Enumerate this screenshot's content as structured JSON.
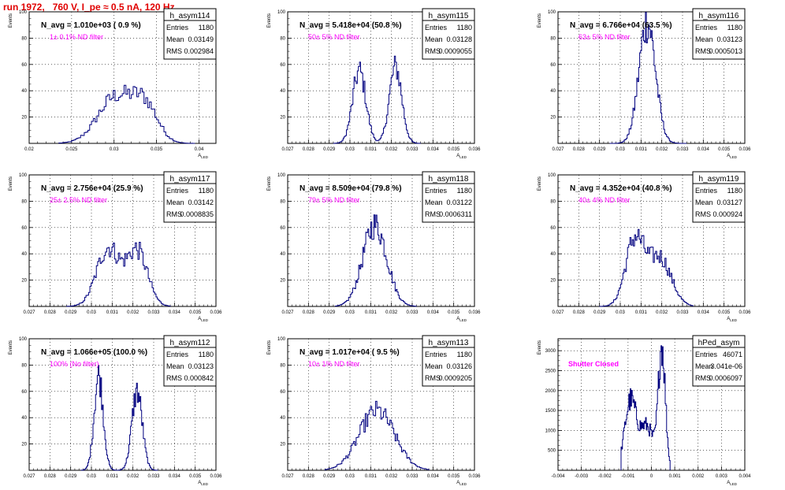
{
  "run_title": "run 1972,   760 V, I_pe ≈ 0.5 nA, 120 Hz",
  "colors": {
    "histogram": "#00007f",
    "annotation": "#ff00ff",
    "title": "#e00000",
    "grid": "#000000"
  },
  "stats_labels": {
    "entries": "Entries",
    "mean": "Mean",
    "rms": "RMS"
  },
  "chart_data": [
    {
      "type": "histogram",
      "name": "h_asym114",
      "nav": "N_avg = 1.010e+03 ( 0.9 %)",
      "note": "1± 0.1% ND filter",
      "xlabel": "A_LED",
      "ylabel": "Events",
      "xlim": [
        0.02,
        0.042
      ],
      "ylim": [
        0,
        100
      ],
      "xticks": [
        "0.02",
        "0.025",
        "0.03",
        "0.035",
        "0.04"
      ],
      "xtick_values": [
        0.02,
        0.025,
        0.03,
        0.035,
        0.04
      ],
      "yticks": [
        "20",
        "40",
        "60",
        "80",
        "100"
      ],
      "ytick_values": [
        20,
        40,
        60,
        80,
        100
      ],
      "stats": {
        "entries": "1180",
        "mean": "0.03149",
        "rms": "0.002984"
      },
      "peaks": [
        {
          "mu": 0.0302,
          "sigma": 0.0021,
          "height": 35
        },
        {
          "mu": 0.0337,
          "sigma": 0.0015,
          "height": 26
        }
      ],
      "bins": {
        "lo": 0.0235,
        "hi": 0.0395,
        "n": 75
      }
    },
    {
      "type": "histogram",
      "name": "h_asym115",
      "nav": "N_avg = 5.418e+04 (50.8 %)",
      "note": "50± 5% ND filter",
      "xlabel": "A_LED",
      "ylabel": "Events",
      "xlim": [
        0.027,
        0.036
      ],
      "ylim": [
        0,
        100
      ],
      "xticks": [
        "0.027",
        "0.028",
        "0.029",
        "0.03",
        "0.031",
        "0.032",
        "0.033",
        "0.034",
        "0.035",
        "0.036"
      ],
      "xtick_values": [
        0.027,
        0.028,
        0.029,
        0.03,
        0.031,
        0.032,
        0.033,
        0.034,
        0.035,
        0.036
      ],
      "yticks": [
        "20",
        "40",
        "60",
        "80",
        "100"
      ],
      "ytick_values": [
        20,
        40,
        60,
        80,
        100
      ],
      "stats": {
        "entries": "1180",
        "mean": "0.03128",
        "rms": "0.0009055"
      },
      "peaks": [
        {
          "mu": 0.03045,
          "sigma": 0.00032,
          "height": 55
        },
        {
          "mu": 0.0322,
          "sigma": 0.0003,
          "height": 58
        }
      ],
      "bins": {
        "lo": 0.0292,
        "hi": 0.0334,
        "n": 80
      }
    },
    {
      "type": "histogram",
      "name": "h_asym116",
      "nav": "N_avg = 6.766e+04 (63.5 %)",
      "note": "63± 5% ND filter",
      "xlabel": "A_LED",
      "ylabel": "Events",
      "xlim": [
        0.027,
        0.036
      ],
      "ylim": [
        0,
        100
      ],
      "xticks": [
        "0.027",
        "0.028",
        "0.029",
        "0.03",
        "0.031",
        "0.032",
        "0.033",
        "0.034",
        "0.035",
        "0.036"
      ],
      "xtick_values": [
        0.027,
        0.028,
        0.029,
        0.03,
        0.031,
        0.032,
        0.033,
        0.034,
        0.035,
        0.036
      ],
      "yticks": [
        "20",
        "40",
        "60",
        "80",
        "100"
      ],
      "ytick_values": [
        20,
        40,
        60,
        80,
        100
      ],
      "stats": {
        "entries": "1180",
        "mean": "0.03123",
        "rms": "0.0005013"
      },
      "peaks": [
        {
          "mu": 0.0313,
          "sigma": 0.0004,
          "height": 92
        }
      ],
      "bins": {
        "lo": 0.0295,
        "hi": 0.0332,
        "n": 80
      }
    },
    {
      "type": "histogram",
      "name": "h_asym117",
      "nav": "N_avg = 2.756e+04 (25.9 %)",
      "note": "25± 2.5% ND filter",
      "xlabel": "A_LED",
      "ylabel": "Events",
      "xlim": [
        0.027,
        0.036
      ],
      "ylim": [
        0,
        100
      ],
      "xticks": [
        "0.027",
        "0.028",
        "0.029",
        "0.03",
        "0.031",
        "0.032",
        "0.033",
        "0.034",
        "0.035",
        "0.036"
      ],
      "xtick_values": [
        0.027,
        0.028,
        0.029,
        0.03,
        0.031,
        0.032,
        0.033,
        0.034,
        0.035,
        0.036
      ],
      "yticks": [
        "20",
        "40",
        "60",
        "80",
        "100"
      ],
      "ytick_values": [
        20,
        40,
        60,
        80,
        100
      ],
      "stats": {
        "entries": "1180",
        "mean": "0.03142",
        "rms": "0.0008835"
      },
      "peaks": [
        {
          "mu": 0.0308,
          "sigma": 0.00055,
          "height": 44
        },
        {
          "mu": 0.0322,
          "sigma": 0.0005,
          "height": 42
        }
      ],
      "bins": {
        "lo": 0.0288,
        "hi": 0.0338,
        "n": 80
      }
    },
    {
      "type": "histogram",
      "name": "h_asym118",
      "nav": "N_avg = 8.509e+04 (79.8 %)",
      "note": "79± 5% ND filter",
      "xlabel": "A_LED",
      "ylabel": "Events",
      "xlim": [
        0.027,
        0.036
      ],
      "ylim": [
        0,
        100
      ],
      "xticks": [
        "0.027",
        "0.028",
        "0.029",
        "0.03",
        "0.031",
        "0.032",
        "0.033",
        "0.034",
        "0.035",
        "0.036"
      ],
      "xtick_values": [
        0.027,
        0.028,
        0.029,
        0.03,
        0.031,
        0.032,
        0.033,
        0.034,
        0.035,
        0.036
      ],
      "yticks": [
        "20",
        "40",
        "60",
        "80",
        "100"
      ],
      "ytick_values": [
        20,
        40,
        60,
        80,
        100
      ],
      "stats": {
        "entries": "1180",
        "mean": "0.03122",
        "rms": "0.0006311"
      },
      "peaks": [
        {
          "mu": 0.0312,
          "sigma": 0.00058,
          "height": 62
        }
      ],
      "bins": {
        "lo": 0.0293,
        "hi": 0.0332,
        "n": 80
      }
    },
    {
      "type": "histogram",
      "name": "h_asym119",
      "nav": "N_avg = 4.352e+04 (40.8 %)",
      "note": "40± 4% ND filter",
      "xlabel": "A_LED",
      "ylabel": "Events",
      "xlim": [
        0.027,
        0.036
      ],
      "ylim": [
        0,
        100
      ],
      "xticks": [
        "0.027",
        "0.028",
        "0.029",
        "0.03",
        "0.031",
        "0.032",
        "0.033",
        "0.034",
        "0.035",
        "0.036"
      ],
      "xtick_values": [
        0.027,
        0.028,
        0.029,
        0.03,
        0.031,
        0.032,
        0.033,
        0.034,
        0.035,
        0.036
      ],
      "yticks": [
        "20",
        "40",
        "60",
        "80",
        "100"
      ],
      "ytick_values": [
        20,
        40,
        60,
        80,
        100
      ],
      "stats": {
        "entries": "1180",
        "mean": "0.03127",
        "rms": "0.000924"
      },
      "peaks": [
        {
          "mu": 0.0307,
          "sigma": 0.00045,
          "height": 50
        },
        {
          "mu": 0.0319,
          "sigma": 0.00055,
          "height": 37
        }
      ],
      "bins": {
        "lo": 0.029,
        "hi": 0.0335,
        "n": 80
      }
    },
    {
      "type": "histogram",
      "name": "h_asym112",
      "nav": "N_avg = 1.066e+05 (100.0 %)",
      "note": "100% (No filter)",
      "xlabel": "A_LED",
      "ylabel": "Events",
      "xlim": [
        0.027,
        0.036
      ],
      "ylim": [
        0,
        100
      ],
      "xticks": [
        "0.027",
        "0.028",
        "0.029",
        "0.03",
        "0.031",
        "0.032",
        "0.033",
        "0.034",
        "0.035",
        "0.036"
      ],
      "xtick_values": [
        0.027,
        0.028,
        0.029,
        0.03,
        0.031,
        0.032,
        0.033,
        0.034,
        0.035,
        0.036
      ],
      "yticks": [
        "20",
        "40",
        "60",
        "80",
        "100"
      ],
      "ytick_values": [
        20,
        40,
        60,
        80,
        100
      ],
      "stats": {
        "entries": "1180",
        "mean": "0.03123",
        "rms": "0.000842"
      },
      "peaks": [
        {
          "mu": 0.03035,
          "sigma": 0.00022,
          "height": 72
        },
        {
          "mu": 0.0322,
          "sigma": 0.00025,
          "height": 60
        }
      ],
      "bins": {
        "lo": 0.0295,
        "hi": 0.0332,
        "n": 90
      }
    },
    {
      "type": "histogram",
      "name": "h_asym113",
      "nav": "N_avg = 1.017e+04 ( 9.5 %)",
      "note": "10± 1% ND filter",
      "xlabel": "A_LED",
      "ylabel": "Events",
      "xlim": [
        0.027,
        0.036
      ],
      "ylim": [
        0,
        100
      ],
      "xticks": [
        "0.027",
        "0.028",
        "0.029",
        "0.03",
        "0.031",
        "0.032",
        "0.033",
        "0.034",
        "0.035",
        "0.036"
      ],
      "xtick_values": [
        0.027,
        0.028,
        0.029,
        0.03,
        0.031,
        0.032,
        0.033,
        0.034,
        0.035,
        0.036
      ],
      "yticks": [
        "20",
        "40",
        "60",
        "80",
        "100"
      ],
      "ytick_values": [
        20,
        40,
        60,
        80,
        100
      ],
      "stats": {
        "entries": "1180",
        "mean": "0.03126",
        "rms": "0.0009205"
      },
      "peaks": [
        {
          "mu": 0.0313,
          "sigma": 0.00085,
          "height": 45
        }
      ],
      "bins": {
        "lo": 0.0288,
        "hi": 0.0338,
        "n": 80
      }
    },
    {
      "type": "histogram",
      "name": "hPed_asym",
      "nav": "",
      "note": "Shutter Closed",
      "xlabel": "A_LED",
      "ylabel": "Events",
      "xlim": [
        -0.004,
        0.004
      ],
      "ylim": [
        0,
        3300
      ],
      "xticks": [
        "-0.004",
        "-0.003",
        "-0.002",
        "-0.001",
        "0",
        "0.001",
        "0.002",
        "0.003",
        "0.004"
      ],
      "xtick_values": [
        -0.004,
        -0.003,
        -0.002,
        -0.001,
        0,
        0.001,
        0.002,
        0.003,
        0.004
      ],
      "yticks": [
        "500",
        "1000",
        "1500",
        "2000",
        "2500",
        "3000"
      ],
      "ytick_values": [
        500,
        1000,
        1500,
        2000,
        2500,
        3000
      ],
      "stats": {
        "entries": "46071",
        "mean": "3.041e-06",
        "rms": "0.0006097"
      },
      "peaks": [
        {
          "mu": -0.0009,
          "sigma": 0.00025,
          "height": 1700
        },
        {
          "mu": -0.0002,
          "sigma": 0.0003,
          "height": 1100
        },
        {
          "mu": 0.00045,
          "sigma": 0.00015,
          "height": 3050
        }
      ],
      "bins": {
        "lo": -0.0013,
        "hi": 0.0008,
        "n": 70
      }
    }
  ]
}
